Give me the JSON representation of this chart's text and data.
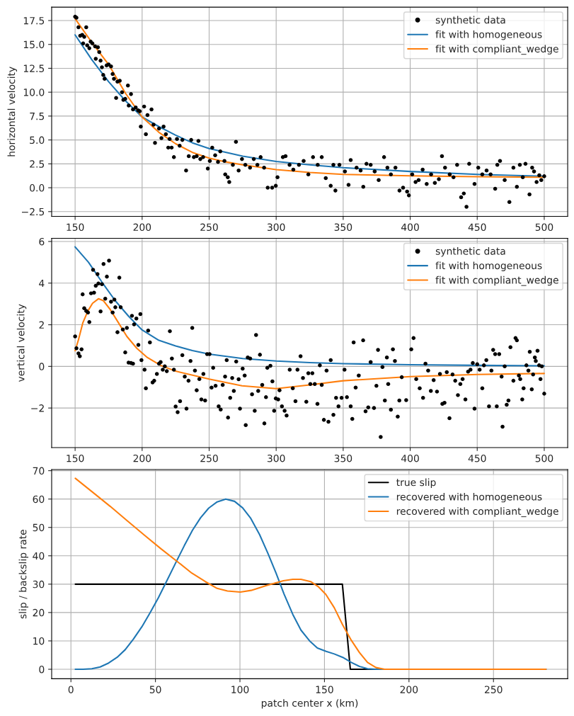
{
  "chart_data": [
    {
      "type": "line",
      "ylabel": "horizontal velocity",
      "xlim": [
        132.5,
        517.5
      ],
      "ylim": [
        -3.0,
        18.9
      ],
      "xticks": [
        150,
        200,
        250,
        300,
        350,
        400,
        450,
        500
      ],
      "yticks": [
        {
          "value": -2.5,
          "label": "−2.5"
        },
        {
          "value": 0,
          "label": "0.0"
        },
        {
          "value": 2.5,
          "label": "2.5"
        },
        {
          "value": 5,
          "label": "5.0"
        },
        {
          "value": 7.5,
          "label": "7.5"
        },
        {
          "value": 10,
          "label": "10.0"
        },
        {
          "value": 12.5,
          "label": "12.5"
        },
        {
          "value": 15,
          "label": "15.0"
        },
        {
          "value": 17.5,
          "label": "17.5"
        }
      ],
      "grid": true,
      "legend": "top right",
      "series": [
        {
          "name": "synthetic data",
          "type": "scatter",
          "marker": "circle",
          "color": "#000000",
          "x": [
            150,
            151,
            152.5,
            153.8,
            155.3,
            156,
            156.8,
            158.3,
            159,
            160.6,
            161.6,
            162.9,
            164.9,
            165.4,
            167,
            168,
            169,
            170,
            171,
            172,
            173.5,
            175,
            176.8,
            178,
            179,
            180.6,
            181.6,
            183.3,
            185,
            186,
            187.4,
            189.4,
            190,
            191.7,
            193.2,
            195.2,
            197,
            198.2,
            199,
            201.5,
            202.8,
            204,
            207,
            208.5,
            209.6,
            212.6,
            214.4,
            216,
            217.7,
            219.5,
            220.5,
            222,
            223.7,
            226,
            228,
            230,
            232.8,
            234.8,
            236.6,
            238.6,
            240.7,
            242,
            243.4,
            245.5,
            249,
            250.5,
            252.3,
            254.5,
            256.6,
            258.3,
            261.4,
            262,
            263.9,
            265,
            267.7,
            270,
            272,
            274.5,
            277,
            280.5,
            283.3,
            286,
            288.4,
            291,
            293.7,
            297,
            299.7,
            301,
            305,
            307,
            310,
            312.8,
            317,
            320.5,
            324,
            327.5,
            331,
            334,
            337,
            340.7,
            342.7,
            344.2,
            347.2,
            351.3,
            354,
            355.6,
            360,
            363,
            365,
            367.4,
            370.5,
            373.5,
            376.5,
            380.5,
            383,
            385.6,
            389,
            392,
            394.7,
            397.7,
            399,
            401.5,
            404,
            406.3,
            409.3,
            412.3,
            415.6,
            418.4,
            421.4,
            423.7,
            426,
            429.5,
            432.3,
            435,
            438,
            440,
            442,
            444,
            448,
            450.8,
            453.8,
            457,
            460,
            463.4,
            465,
            467,
            470.5,
            474,
            477,
            479.6,
            481.8,
            484,
            486,
            489,
            491,
            492.4,
            494.3,
            496.3,
            497.8,
            500
          ],
          "values": [
            17.9,
            17.8,
            16.8,
            15.9,
            16,
            15.1,
            15.8,
            16.8,
            14.9,
            14.6,
            15.3,
            15.1,
            14.8,
            13.5,
            14.7,
            14.2,
            13.3,
            12.6,
            11.8,
            11.4,
            12.8,
            12.9,
            12.7,
            11.9,
            11.4,
            9.4,
            11.1,
            11.2,
            10,
            9.2,
            9.3,
            10.7,
            8.6,
            9.8,
            8.2,
            8.4,
            8.1,
            8,
            6.4,
            8.5,
            5.6,
            7.6,
            8.2,
            6.6,
            4.7,
            6.2,
            5.2,
            6.4,
            5.6,
            4.2,
            5.1,
            4.2,
            3.2,
            5.1,
            4.4,
            5,
            1.8,
            3.3,
            5,
            3.2,
            3.3,
            4.9,
            3,
            3.2,
            2,
            2.8,
            4.2,
            3.4,
            2.7,
            3.8,
            2.8,
            1.4,
            1.1,
            0.6,
            2.4,
            4.8,
            1.8,
            3,
            2.4,
            2.1,
            3,
            2.4,
            3.2,
            2.1,
            0,
            0,
            0.2,
            1.1,
            3.2,
            3.3,
            2.4,
            1.9,
            2.4,
            2.8,
            1.4,
            3.2,
            2.4,
            3.2,
            1,
            0.2,
            2.4,
            -0.3,
            2.4,
            1.7,
            0.3,
            2.9,
            2.1,
            1.8,
            0.1,
            2.5,
            2.4,
            1.7,
            0.8,
            3.2,
            2.1,
            1.4,
            2.1,
            -0.3,
            0,
            -0.4,
            -0.8,
            1.4,
            0.6,
            0.8,
            1.9,
            0.4,
            1.4,
            0.5,
            0.9,
            3.3,
            2.1,
            1.4,
            1.1,
            2.4,
            -1,
            -0.6,
            -2,
            2.5,
            0.4,
            2.1,
            1.4,
            1.8,
            1.4,
            -0.1,
            2.4,
            2.8,
            0.8,
            -1.5,
            2.1,
            0.1,
            2.4,
            1.1,
            2.5,
            -0.7,
            2.1,
            1.7,
            0.6,
            1.3,
            0.8,
            1.2
          ]
        },
        {
          "name": "fit with homogeneous",
          "color": "#1f77b4",
          "x": [
            150,
            162.5,
            175,
            187.5,
            200,
            212.5,
            225,
            237.5,
            250,
            275,
            300,
            325,
            350,
            400,
            450,
            500
          ],
          "values": [
            16.0,
            13.4,
            11.1,
            9.1,
            7.4,
            6.4,
            5.5,
            4.7,
            4.1,
            3.3,
            2.75,
            2.4,
            2.1,
            1.7,
            1.4,
            1.2
          ]
        },
        {
          "name": "fit with compliant_wedge",
          "color": "#ff7f0e",
          "x": [
            150,
            162.5,
            175,
            187.5,
            200,
            212.5,
            225,
            237.5,
            250,
            262.5,
            275,
            300,
            325,
            350,
            400,
            450,
            500
          ],
          "values": [
            17.7,
            15.2,
            12.9,
            9.9,
            7.4,
            5.8,
            4.6,
            3.7,
            3.1,
            2.7,
            2.4,
            1.9,
            1.6,
            1.4,
            1.25,
            1.15,
            1.1
          ]
        }
      ]
    },
    {
      "type": "line",
      "ylabel": "vertical velocity",
      "xlim": [
        132.5,
        517.5
      ],
      "ylim": [
        -3.9,
        6.15
      ],
      "xticks": [
        150,
        200,
        250,
        300,
        350,
        400,
        450,
        500
      ],
      "yticks": [
        {
          "value": -2,
          "label": "−2"
        },
        0,
        2,
        4,
        6
      ],
      "grid": true,
      "legend": "top right",
      "series": [
        {
          "name": "synthetic data",
          "type": "scatter",
          "marker": "circle",
          "color": "#000000",
          "x": [
            150,
            151,
            152.5,
            153.5,
            154.8,
            155.6,
            156.8,
            158.3,
            159.6,
            160.6,
            161.9,
            163.4,
            164.1,
            165.4,
            166.7,
            167.4,
            169,
            170,
            171.2,
            172.5,
            173.7,
            175.3,
            176.8,
            178,
            179.3,
            180,
            181.6,
            183,
            184,
            185.6,
            187.4,
            188.6,
            189.9,
            191.7,
            193.2,
            192.4,
            194,
            195.7,
            197.2,
            198.7,
            199.5,
            201.8,
            202.8,
            204.5,
            205.8,
            207.8,
            209,
            211,
            212.6,
            213.8,
            215.4,
            216.9,
            218.4,
            220.7,
            222.2,
            223.7,
            225,
            226.5,
            228.3,
            230,
            231.8,
            233.1,
            234.6,
            236.1,
            237.4,
            239.4,
            240.7,
            242.7,
            244.2,
            245.7,
            247,
            248.5,
            250.3,
            251.8,
            253,
            254.8,
            257.1,
            258.6,
            260.1,
            261.9,
            263.1,
            264.1,
            265.7,
            267.2,
            268.4,
            270.2,
            272,
            273,
            275,
            276.5,
            277.3,
            278.8,
            280.6,
            282,
            284,
            285,
            286.6,
            287.9,
            289.6,
            291.2,
            292.4,
            293.4,
            295.7,
            297.2,
            298.5,
            299.7,
            301.5,
            302.5,
            304.3,
            306.3,
            307.8,
            310.1,
            312.4,
            314.4,
            315.9,
            318.2,
            320,
            322.5,
            324,
            325.5,
            327,
            328.8,
            330.8,
            332.6,
            334,
            335.6,
            337.6,
            339,
            340.7,
            342.7,
            344.7,
            346.5,
            348.8,
            351,
            352.8,
            355.6,
            356.8,
            357.8,
            359.3,
            361.6,
            364.9,
            366.7,
            368.7,
            370.5,
            373,
            374.8,
            376,
            378,
            379.3,
            381.1,
            382.6,
            383.6,
            385.6,
            387.1,
            388.6,
            390.7,
            391.9,
            393.7,
            397,
            400.8,
            402.5,
            404.5,
            407.1,
            409.6,
            411.4,
            413.4,
            415.4,
            417.5,
            420,
            422.2,
            424,
            425.6,
            427.3,
            429.3,
            431.6,
            433.6,
            435.6,
            437.4,
            439.1,
            441.2,
            443.2,
            445,
            446.7,
            448,
            450,
            451.8,
            453.8,
            455,
            456.8,
            458.8,
            460.6,
            461.9,
            463.4,
            464.6,
            466.4,
            468.2,
            468.9,
            470.5,
            472,
            473.3,
            474.8,
            477,
            478.6,
            479.6,
            481.1,
            482.1,
            483.6,
            484.6,
            486.7,
            488.2,
            489.2,
            490.7,
            491.7,
            493,
            493.7,
            495,
            496.2,
            497.2,
            498.2,
            500
          ],
          "values": [
            1.44,
            0.87,
            0.62,
            0.49,
            0.82,
            3.46,
            2.79,
            2.66,
            2.59,
            2.13,
            3.51,
            4.64,
            3.54,
            3.87,
            4.43,
            3.98,
            2.64,
            3.95,
            4.92,
            3.25,
            4.31,
            5.08,
            3.11,
            2.59,
            3.21,
            2.84,
            1.64,
            4.26,
            2.84,
            1.77,
            0.67,
            1.85,
            0.18,
            0.16,
            0.13,
            2.43,
            2.02,
            2.3,
            1.03,
            2.51,
            0.3,
            -0.16,
            -1.05,
            1.72,
            1.15,
            -0.77,
            -0.69,
            -0.36,
            0.13,
            0.21,
            -0.16,
            0,
            -0.23,
            1.69,
            0.38,
            -0.16,
            -1.93,
            -2.2,
            -1.67,
            0.54,
            -0.49,
            -2.03,
            -0.69,
            0.26,
            1.85,
            -0.2,
            -1.15,
            -0.61,
            -1.59,
            -0.36,
            -1.64,
            0.59,
            0.59,
            -1.02,
            -0.07,
            -0.93,
            -1.92,
            -2.07,
            -0.89,
            -0.49,
            0.3,
            -2.46,
            -1.51,
            -0.56,
            -1.18,
            0.23,
            -0.62,
            -2.03,
            -0.11,
            -0.44,
            -2.82,
            0.43,
            0.38,
            -1.34,
            -2.13,
            1.51,
            -1.18,
            0.56,
            -0.89,
            -2.74,
            -1.48,
            -0.07,
            0.03,
            -0.72,
            -2.13,
            -1.54,
            -1.59,
            -1.15,
            -1.92,
            -2.13,
            -2.36,
            -0.16,
            -1.05,
            -1.67,
            -0.16,
            0.49,
            -0.56,
            -1.7,
            -0.33,
            -0.85,
            -0.33,
            -0.85,
            -1.8,
            0.05,
            -0.89,
            -2.57,
            -0.2,
            -2.66,
            0.3,
            -2.33,
            -1.51,
            -1.92,
            -1.51,
            -0.16,
            -1.48,
            -1.92,
            -2.52,
            1.15,
            -1.02,
            -0.44,
            1.25,
            -2.16,
            -1.97,
            0.21,
            -2,
            -0.93,
            0.79,
            -3.39,
            -0.03,
            -1.64,
            0.43,
            -0.85,
            -2.08,
            0.82,
            0.26,
            -2.41,
            -1.64,
            -0.52,
            -1.62,
            0.82,
            1.36,
            -0.61,
            -1.05,
            -1.51,
            0.13,
            -0.2,
            -1.18,
            -0.66,
            -1.21,
            -0.36,
            -1.8,
            -1.75,
            -0.28,
            -2.49,
            -0.39,
            -0.69,
            -1.38,
            -0.85,
            -0.61,
            -1.59,
            -0.25,
            -0.16,
            0.16,
            -2.03,
            0.1,
            -0.16,
            -1.05,
            0.05,
            0.3,
            -1.92,
            -0.2,
            0.79,
            0.59,
            -1.92,
            0.59,
            -0.49,
            -2.9,
            0,
            -1.84,
            -1.64,
            0.92,
            -0.69,
            1.36,
            1.25,
            -0.44,
            -0.61,
            -1.59,
            -1.05,
            0.05,
            -0.2,
            0.7,
            -1.1,
            -0.39,
            0.43,
            0.26,
            0.75,
            0.05,
            -0.61,
            0,
            -1.31
          ]
        },
        {
          "name": "fit with homogeneous",
          "color": "#1f77b4",
          "x": [
            150,
            160,
            170,
            180,
            190,
            200,
            212.5,
            225,
            237.5,
            250,
            275,
            300,
            325,
            350,
            400,
            450,
            500
          ],
          "values": [
            5.74,
            5.0,
            4.05,
            3.15,
            2.4,
            1.75,
            1.25,
            0.98,
            0.76,
            0.59,
            0.38,
            0.26,
            0.18,
            0.13,
            0.08,
            0.05,
            0.03
          ]
        },
        {
          "name": "fit with compliant_wedge",
          "color": "#ff7f0e",
          "x": [
            150,
            152.5,
            155.8,
            159.6,
            163,
            167.4,
            171,
            176,
            182.3,
            188.6,
            196,
            203.8,
            213.8,
            225,
            250,
            274.5,
            300,
            325,
            350,
            400,
            450,
            500
          ],
          "values": [
            0.75,
            1.28,
            2.1,
            2.67,
            3.03,
            3.25,
            3.16,
            2.75,
            2.1,
            1.44,
            0.87,
            0.43,
            0.05,
            -0.23,
            -0.61,
            -0.93,
            -1.07,
            -0.89,
            -0.69,
            -0.49,
            -0.39,
            -0.34
          ]
        }
      ]
    },
    {
      "type": "line",
      "xlabel": "patch center x (km)",
      "ylabel": "slip / backslip rate",
      "xlim": [
        -11.4,
        293.9
      ],
      "ylim": [
        -3.35,
        70.4
      ],
      "xticks": [
        0,
        50,
        100,
        150,
        200,
        250
      ],
      "yticks": [
        0,
        10,
        20,
        30,
        40,
        50,
        60,
        70
      ],
      "grid": true,
      "legend": "top right",
      "series": [
        {
          "name": "true slip",
          "color": "#000000",
          "x": [
            2.6,
            160.6,
            165.3,
            281
          ],
          "values": [
            30,
            30,
            0,
            0
          ]
        },
        {
          "name": "recovered with homogeneous",
          "color": "#1f77b4",
          "x": [
            2.6,
            7.2,
            12.4,
            17.3,
            22.3,
            27.3,
            32.1,
            36.9,
            42,
            47,
            51.8,
            56.6,
            61.8,
            67.1,
            71.9,
            76.7,
            81.5,
            86.5,
            91.6,
            96.8,
            101.6,
            106.4,
            111.6,
            116.5,
            121.3,
            126.1,
            131.3,
            136.1,
            141.2,
            145.8,
            151,
            155.8,
            160.8,
            165.9,
            170.7,
            175.5,
            180.5,
            281
          ],
          "values": [
            0,
            0,
            0.2,
            0.8,
            2.2,
            4.2,
            6.9,
            10.6,
            15,
            20.1,
            25.3,
            31,
            37.3,
            43.6,
            49,
            53.4,
            56.8,
            59,
            60,
            59.2,
            56.9,
            53.2,
            47.5,
            40.9,
            34,
            26.5,
            19.3,
            13.8,
            10,
            7.5,
            6.3,
            5.4,
            4.2,
            2.4,
            1,
            0.2,
            0,
            0
          ]
        },
        {
          "name": "recovered with compliant_wedge",
          "color": "#ff7f0e",
          "x": [
            2.6,
            13.3,
            23.3,
            33.4,
            43.4,
            53.4,
            63.5,
            71.5,
            79.5,
            86.5,
            92.6,
            100.2,
            106.6,
            115.7,
            125.7,
            131.3,
            136.1,
            141.8,
            146.2,
            150.8,
            155.8,
            160.8,
            165.9,
            170.7,
            175.5,
            180.5,
            185.5,
            281
          ],
          "values": [
            67.3,
            62.2,
            57.4,
            52.3,
            47.3,
            42.4,
            37.7,
            33.9,
            30.9,
            28.5,
            27.6,
            27.2,
            27.8,
            29.5,
            31.2,
            31.7,
            31.7,
            30.9,
            29.2,
            26.4,
            21.7,
            15.6,
            10.2,
            5.9,
            2.4,
            0.6,
            0,
            0
          ]
        }
      ]
    }
  ]
}
